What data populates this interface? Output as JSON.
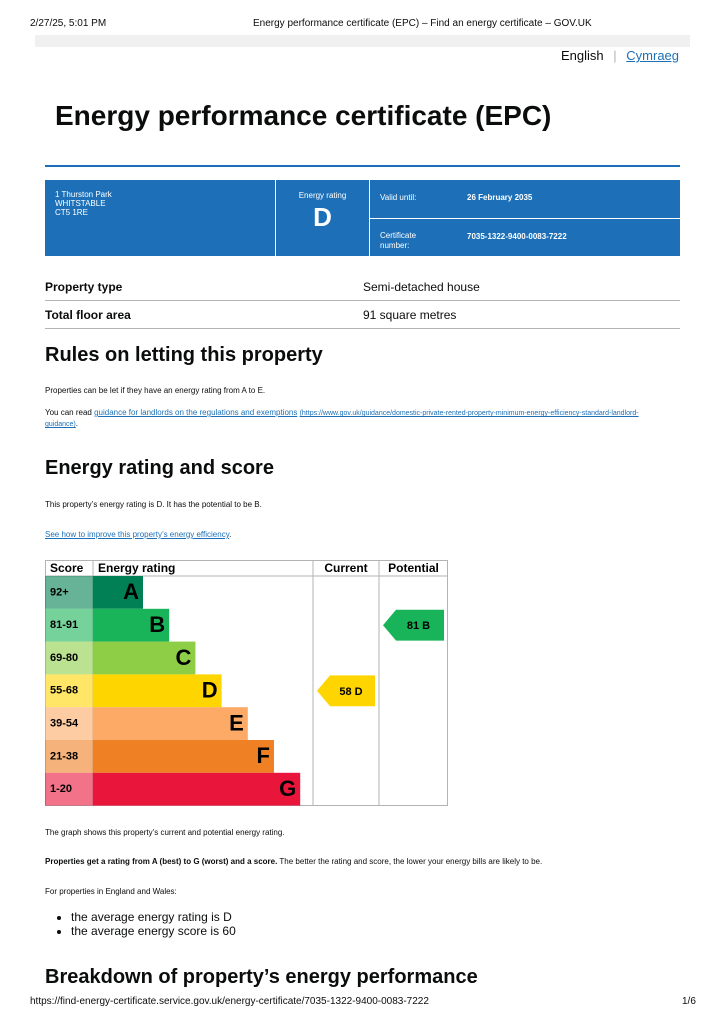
{
  "header": {
    "print_date": "2/27/25, 5:01 PM",
    "page_title": "Energy performance certificate (EPC) – Find an energy certificate – GOV.UK"
  },
  "language": {
    "current": "English",
    "other": "Cymraeg"
  },
  "title": "Energy performance certificate (EPC)",
  "summary": {
    "address": [
      "1 Thurston Park",
      "WHITSTABLE",
      "CT5 1RE"
    ],
    "rating_label": "Energy rating",
    "rating": "D",
    "valid_label": "Valid until:",
    "valid_until": "26 February 2035",
    "cert_label": "Certificate number:",
    "cert_number": "7035-1322-9400-0083-7222"
  },
  "property": {
    "rows": [
      [
        "Property type",
        "Semi-detached house"
      ],
      [
        "Total floor area",
        "91 square metres"
      ]
    ]
  },
  "letting": {
    "heading": "Rules on letting this property",
    "p1": "Properties can be let if they have an energy rating from A to E.",
    "p2_prefix": "You can read",
    "link": "guidance for landlords on the regulations and exemptions",
    "url": "(https://www.gov.uk/guidance/domestic-private-rented-property-minimum-energy-efficiency-standard-landlord-guidance)",
    "p2_suffix": "."
  },
  "rating_section": {
    "heading": "Energy rating and score",
    "p1": "This property’s energy rating is D. It has the potential to be B.",
    "link": "See how to improve this property’s energy efficiency",
    "link_suffix": "."
  },
  "epc_chart": {
    "headers": [
      "Score",
      "Energy rating",
      "Current",
      "Potential"
    ],
    "bands": [
      {
        "score": "92+",
        "letter": "A",
        "color": "#008054"
      },
      {
        "score": "81-91",
        "letter": "B",
        "color": "#19b459"
      },
      {
        "score": "69-80",
        "letter": "C",
        "color": "#8dce46"
      },
      {
        "score": "55-68",
        "letter": "D",
        "color": "#ffd500"
      },
      {
        "score": "39-54",
        "letter": "E",
        "color": "#fcaa65"
      },
      {
        "score": "21-38",
        "letter": "F",
        "color": "#ef8023"
      },
      {
        "score": "1-20",
        "letter": "G",
        "color": "#e9153b"
      }
    ],
    "current": {
      "value": 58,
      "letter": "D"
    },
    "potential": {
      "value": 81,
      "letter": "B"
    }
  },
  "notes": {
    "p1": "The graph shows this property’s current and potential energy rating.",
    "p2_bold": "Properties get a rating from A (best) to G (worst) and a score.",
    "p2_rest": "The better the rating and score, the lower your energy bills are likely to be.",
    "p3": "For properties in England and Wales:",
    "list": [
      "the average energy rating is D",
      "the average energy score is 60"
    ]
  },
  "breakdown_heading": "Breakdown of property’s energy performance",
  "footer": {
    "url": "https://find-energy-certificate.service.gov.uk/energy-certificate/7035-1322-9400-0083-7222",
    "page": "1/6"
  }
}
